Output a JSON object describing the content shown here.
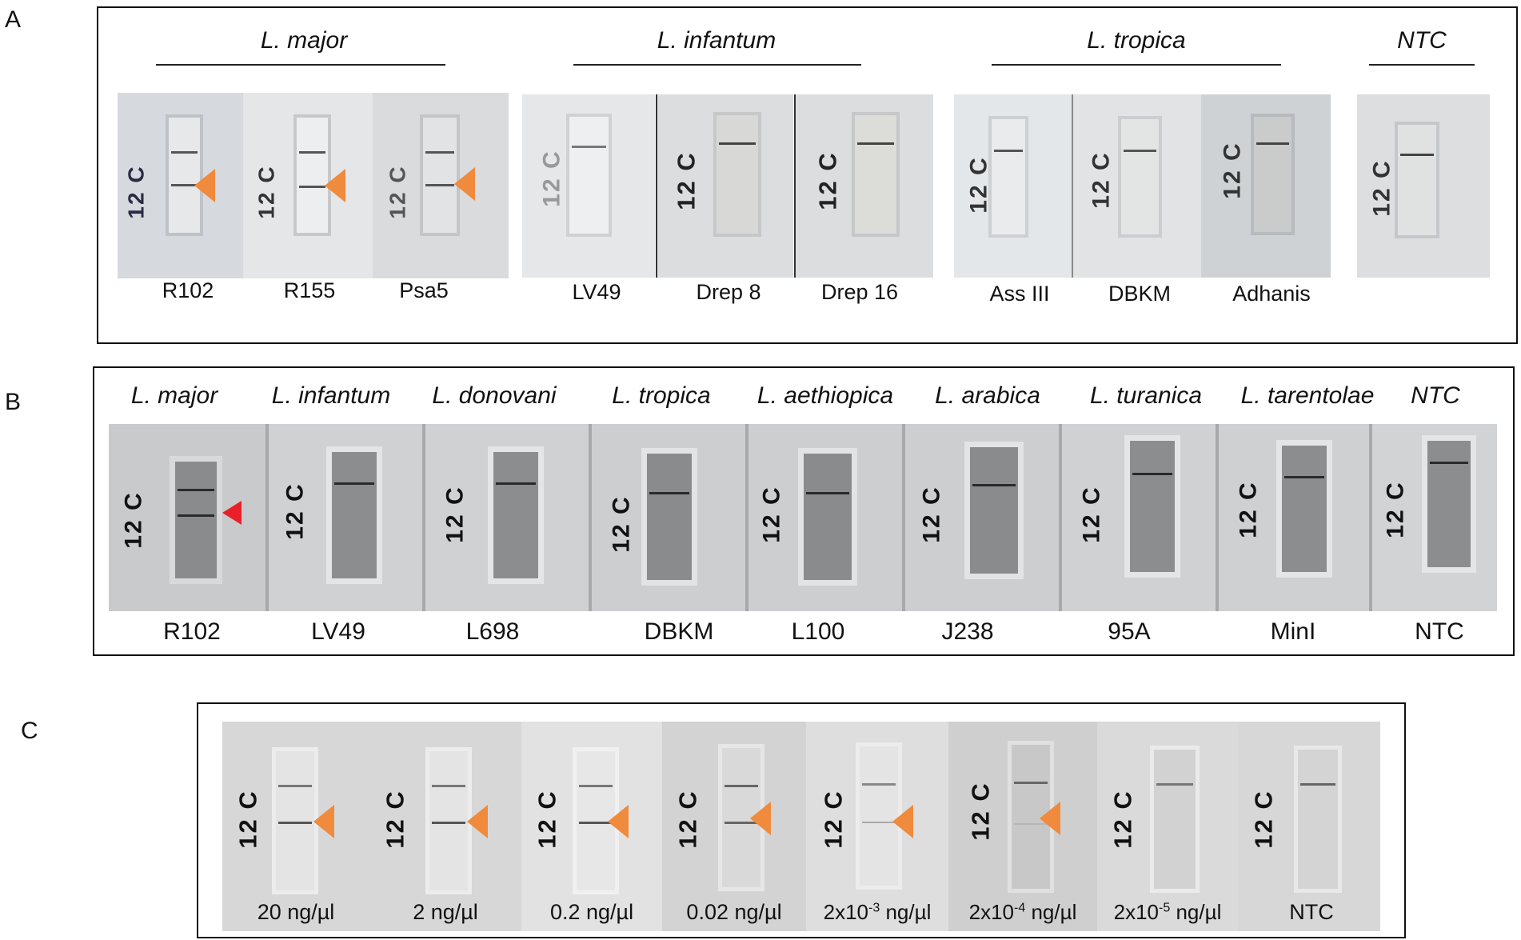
{
  "panel_a": {
    "letter": "A",
    "species": [
      "L. major",
      "L. infantum",
      "L. tropica",
      "NTC"
    ],
    "strip_text": "12 C",
    "samples": [
      "R102",
      "R155",
      "Psa5",
      "LV49",
      "Drep 8",
      "Drep 16",
      "Ass III",
      "DBKM",
      "Adhanis"
    ],
    "positive_marker_color": "#F08A3C"
  },
  "panel_b": {
    "letter": "B",
    "species": [
      "L. major",
      "L. infantum",
      "L. donovani",
      "L. tropica",
      "L. aethiopica",
      "L. arabica",
      "L. turanica",
      "L. tarentolae",
      "NTC"
    ],
    "strip_text": "12 C",
    "samples": [
      "R102",
      "LV49",
      "L698",
      "DBKM",
      "L100",
      "J238",
      "95A",
      "MinI",
      "NTC"
    ],
    "positive_marker_color": "#E8202A"
  },
  "panel_c": {
    "letter": "C",
    "strip_text": "12 C",
    "concentrations": [
      {
        "base": "20 ng/µl",
        "exp": ""
      },
      {
        "base": "2 ng/µl",
        "exp": ""
      },
      {
        "base": "0.2 ng/µl",
        "exp": ""
      },
      {
        "base": "0.02 ng/µl",
        "exp": ""
      },
      {
        "base": "2x10",
        "exp": "-3",
        "unit": " ng/µl"
      },
      {
        "base": "2x10",
        "exp": "-4",
        "unit": " ng/µl"
      },
      {
        "base": "2x10",
        "exp": "-5",
        "unit": " ng/µl"
      },
      {
        "base": "NTC",
        "exp": ""
      }
    ],
    "positive_marker_color": "#F08A3C"
  }
}
